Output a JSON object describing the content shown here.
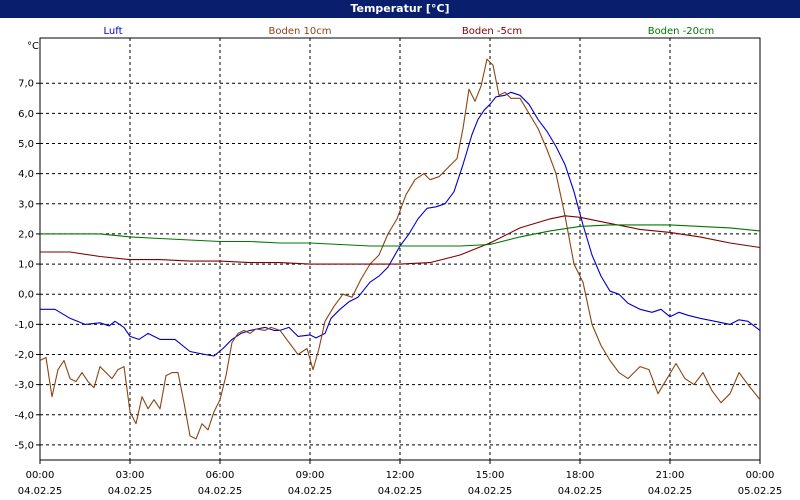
{
  "window": {
    "title": "Temperatur [°C]"
  },
  "chart_data": {
    "type": "line",
    "ylabel": "°C",
    "ylim": [
      -5.5,
      8.5
    ],
    "xlim": [
      0,
      24
    ],
    "grid": true,
    "legend_position": "top",
    "y_ticks": [
      {
        "v": 7,
        "label": "7,0"
      },
      {
        "v": 6,
        "label": "6,0"
      },
      {
        "v": 5,
        "label": "5,0"
      },
      {
        "v": 4,
        "label": "4,0"
      },
      {
        "v": 3,
        "label": "3,0"
      },
      {
        "v": 2,
        "label": "2,0"
      },
      {
        "v": 1,
        "label": "1,0"
      },
      {
        "v": 0,
        "label": "0,0"
      },
      {
        "v": -1,
        "label": "-1,0"
      },
      {
        "v": -2,
        "label": "-2,0"
      },
      {
        "v": -3,
        "label": "-3,0"
      },
      {
        "v": -4,
        "label": "-4,0"
      },
      {
        "v": -5,
        "label": "-5,0"
      }
    ],
    "x_ticks": [
      {
        "h": 0,
        "time": "00:00",
        "date": "04.02.25"
      },
      {
        "h": 3,
        "time": "03:00",
        "date": "04.02.25"
      },
      {
        "h": 6,
        "time": "06:00",
        "date": "04.02.25"
      },
      {
        "h": 9,
        "time": "09:00",
        "date": "04.02.25"
      },
      {
        "h": 12,
        "time": "12:00",
        "date": "04.02.25"
      },
      {
        "h": 15,
        "time": "15:00",
        "date": "04.02.25"
      },
      {
        "h": 18,
        "time": "18:00",
        "date": "04.02.25"
      },
      {
        "h": 21,
        "time": "21:00",
        "date": "04.02.25"
      },
      {
        "h": 24,
        "time": "00:00",
        "date": "05.02.25"
      }
    ],
    "series": [
      {
        "name": "Luft",
        "color": "#0000cc",
        "points": [
          [
            0,
            -0.5
          ],
          [
            0.5,
            -0.5
          ],
          [
            1,
            -0.8
          ],
          [
            1.5,
            -1.0
          ],
          [
            2,
            -0.95
          ],
          [
            2.3,
            -1.05
          ],
          [
            2.5,
            -0.9
          ],
          [
            2.8,
            -1.1
          ],
          [
            3,
            -1.4
          ],
          [
            3.3,
            -1.5
          ],
          [
            3.6,
            -1.3
          ],
          [
            4,
            -1.5
          ],
          [
            4.5,
            -1.5
          ],
          [
            5,
            -1.9
          ],
          [
            5.5,
            -2.0
          ],
          [
            5.8,
            -2.05
          ],
          [
            6.1,
            -1.8
          ],
          [
            6.4,
            -1.5
          ],
          [
            6.7,
            -1.3
          ],
          [
            7,
            -1.2
          ],
          [
            7.5,
            -1.1
          ],
          [
            7.8,
            -1.2
          ],
          [
            8,
            -1.2
          ],
          [
            8.3,
            -1.1
          ],
          [
            8.6,
            -1.4
          ],
          [
            9,
            -1.35
          ],
          [
            9.2,
            -1.45
          ],
          [
            9.5,
            -1.3
          ],
          [
            9.7,
            -0.8
          ],
          [
            10,
            -0.5
          ],
          [
            10.3,
            -0.25
          ],
          [
            10.6,
            -0.1
          ],
          [
            11,
            0.4
          ],
          [
            11.3,
            0.6
          ],
          [
            11.6,
            0.9
          ],
          [
            12,
            1.6
          ],
          [
            12.3,
            2.0
          ],
          [
            12.6,
            2.5
          ],
          [
            12.9,
            2.85
          ],
          [
            13.2,
            2.9
          ],
          [
            13.5,
            3.0
          ],
          [
            13.8,
            3.4
          ],
          [
            14.1,
            4.3
          ],
          [
            14.4,
            5.3
          ],
          [
            14.6,
            5.8
          ],
          [
            14.8,
            6.1
          ],
          [
            15,
            6.3
          ],
          [
            15.2,
            6.55
          ],
          [
            15.5,
            6.6
          ],
          [
            15.7,
            6.7
          ],
          [
            16,
            6.6
          ],
          [
            16.3,
            6.3
          ],
          [
            16.6,
            5.8
          ],
          [
            16.9,
            5.4
          ],
          [
            17.2,
            4.9
          ],
          [
            17.5,
            4.3
          ],
          [
            17.8,
            3.4
          ],
          [
            18.1,
            2.3
          ],
          [
            18.4,
            1.3
          ],
          [
            18.7,
            0.6
          ],
          [
            19,
            0.1
          ],
          [
            19.3,
            0.0
          ],
          [
            19.6,
            -0.3
          ],
          [
            20,
            -0.5
          ],
          [
            20.4,
            -0.6
          ],
          [
            20.7,
            -0.5
          ],
          [
            21,
            -0.75
          ],
          [
            21.3,
            -0.6
          ],
          [
            21.6,
            -0.7
          ],
          [
            22,
            -0.8
          ],
          [
            22.5,
            -0.9
          ],
          [
            23,
            -1.0
          ],
          [
            23.3,
            -0.85
          ],
          [
            23.6,
            -0.9
          ],
          [
            24,
            -1.2
          ]
        ]
      },
      {
        "name": "Boden 10cm",
        "color": "#8b4513",
        "points": [
          [
            0,
            -2.2
          ],
          [
            0.2,
            -2.1
          ],
          [
            0.4,
            -3.4
          ],
          [
            0.6,
            -2.5
          ],
          [
            0.8,
            -2.2
          ],
          [
            1,
            -2.8
          ],
          [
            1.2,
            -2.9
          ],
          [
            1.4,
            -2.6
          ],
          [
            1.6,
            -2.9
          ],
          [
            1.8,
            -3.1
          ],
          [
            2,
            -2.4
          ],
          [
            2.2,
            -2.6
          ],
          [
            2.4,
            -2.8
          ],
          [
            2.6,
            -2.5
          ],
          [
            2.8,
            -2.4
          ],
          [
            3,
            -3.9
          ],
          [
            3.2,
            -4.3
          ],
          [
            3.4,
            -3.4
          ],
          [
            3.6,
            -3.8
          ],
          [
            3.8,
            -3.5
          ],
          [
            4,
            -3.8
          ],
          [
            4.2,
            -2.7
          ],
          [
            4.4,
            -2.6
          ],
          [
            4.6,
            -2.6
          ],
          [
            4.8,
            -3.6
          ],
          [
            5,
            -4.7
          ],
          [
            5.2,
            -4.8
          ],
          [
            5.4,
            -4.3
          ],
          [
            5.6,
            -4.5
          ],
          [
            5.8,
            -3.9
          ],
          [
            6,
            -3.5
          ],
          [
            6.2,
            -2.7
          ],
          [
            6.4,
            -1.6
          ],
          [
            6.6,
            -1.3
          ],
          [
            6.8,
            -1.2
          ],
          [
            7,
            -1.3
          ],
          [
            7.2,
            -1.15
          ],
          [
            7.5,
            -1.2
          ],
          [
            7.7,
            -1.1
          ],
          [
            8,
            -1.2
          ],
          [
            8.3,
            -1.6
          ],
          [
            8.6,
            -2.0
          ],
          [
            8.9,
            -1.8
          ],
          [
            9.1,
            -2.5
          ],
          [
            9.3,
            -1.8
          ],
          [
            9.5,
            -0.9
          ],
          [
            9.8,
            -0.4
          ],
          [
            10.1,
            0.0
          ],
          [
            10.4,
            -0.1
          ],
          [
            10.7,
            0.5
          ],
          [
            11,
            1.0
          ],
          [
            11.3,
            1.3
          ],
          [
            11.6,
            2.0
          ],
          [
            11.9,
            2.5
          ],
          [
            12.2,
            3.3
          ],
          [
            12.5,
            3.8
          ],
          [
            12.8,
            4.0
          ],
          [
            13,
            3.8
          ],
          [
            13.3,
            3.9
          ],
          [
            13.6,
            4.2
          ],
          [
            13.9,
            4.5
          ],
          [
            14.1,
            5.5
          ],
          [
            14.3,
            6.8
          ],
          [
            14.5,
            6.4
          ],
          [
            14.7,
            6.9
          ],
          [
            14.9,
            7.8
          ],
          [
            15.1,
            7.6
          ],
          [
            15.3,
            6.6
          ],
          [
            15.5,
            6.7
          ],
          [
            15.7,
            6.5
          ],
          [
            16,
            6.5
          ],
          [
            16.3,
            6.0
          ],
          [
            16.6,
            5.5
          ],
          [
            16.9,
            4.8
          ],
          [
            17.2,
            4.0
          ],
          [
            17.5,
            2.6
          ],
          [
            17.8,
            1.0
          ],
          [
            18.1,
            0.4
          ],
          [
            18.4,
            -1.0
          ],
          [
            18.7,
            -1.7
          ],
          [
            19,
            -2.2
          ],
          [
            19.3,
            -2.6
          ],
          [
            19.6,
            -2.8
          ],
          [
            20,
            -2.4
          ],
          [
            20.3,
            -2.5
          ],
          [
            20.6,
            -3.3
          ],
          [
            20.9,
            -2.8
          ],
          [
            21.2,
            -2.3
          ],
          [
            21.5,
            -2.8
          ],
          [
            21.8,
            -3.0
          ],
          [
            22.1,
            -2.6
          ],
          [
            22.4,
            -3.2
          ],
          [
            22.7,
            -3.6
          ],
          [
            23,
            -3.3
          ],
          [
            23.3,
            -2.6
          ],
          [
            23.6,
            -3.0
          ],
          [
            24,
            -3.5
          ]
        ]
      },
      {
        "name": "Boden -5cm",
        "color": "#800000",
        "points": [
          [
            0,
            1.4
          ],
          [
            1,
            1.4
          ],
          [
            2,
            1.25
          ],
          [
            3,
            1.15
          ],
          [
            4,
            1.15
          ],
          [
            5,
            1.1
          ],
          [
            6,
            1.1
          ],
          [
            7,
            1.05
          ],
          [
            8,
            1.05
          ],
          [
            9,
            1.0
          ],
          [
            10,
            1.0
          ],
          [
            11,
            1.0
          ],
          [
            12,
            1.0
          ],
          [
            13,
            1.05
          ],
          [
            14,
            1.3
          ],
          [
            15,
            1.7
          ],
          [
            16,
            2.2
          ],
          [
            17,
            2.5
          ],
          [
            17.5,
            2.6
          ],
          [
            18,
            2.55
          ],
          [
            19,
            2.35
          ],
          [
            20,
            2.15
          ],
          [
            21,
            2.05
          ],
          [
            22,
            1.9
          ],
          [
            23,
            1.7
          ],
          [
            24,
            1.55
          ]
        ]
      },
      {
        "name": "Boden -20cm",
        "color": "#007700",
        "points": [
          [
            0,
            2.0
          ],
          [
            2,
            2.0
          ],
          [
            3,
            1.9
          ],
          [
            4,
            1.85
          ],
          [
            5,
            1.8
          ],
          [
            6,
            1.75
          ],
          [
            7,
            1.75
          ],
          [
            8,
            1.7
          ],
          [
            9,
            1.7
          ],
          [
            10,
            1.65
          ],
          [
            11,
            1.6
          ],
          [
            12,
            1.6
          ],
          [
            13,
            1.6
          ],
          [
            14,
            1.6
          ],
          [
            15,
            1.65
          ],
          [
            16,
            1.9
          ],
          [
            17,
            2.1
          ],
          [
            18,
            2.25
          ],
          [
            19,
            2.3
          ],
          [
            20,
            2.3
          ],
          [
            21,
            2.3
          ],
          [
            22,
            2.25
          ],
          [
            23,
            2.2
          ],
          [
            24,
            2.1
          ]
        ]
      }
    ]
  }
}
